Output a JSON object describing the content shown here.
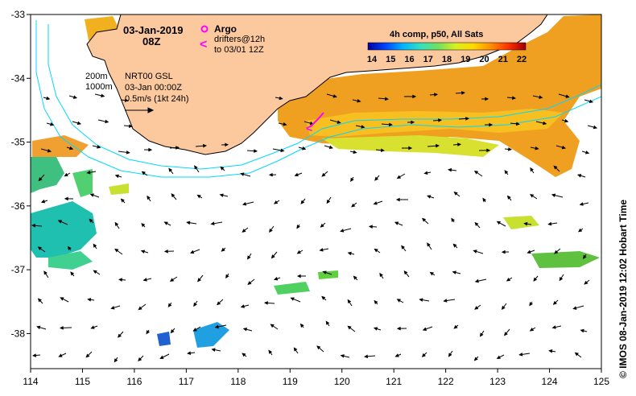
{
  "header": {
    "date": "03-Jan-2019",
    "time": "08Z"
  },
  "legend": {
    "argo_label": "Argo",
    "drifters_label_1": "drifters@12h",
    "drifters_label_2": "to 03/01 12Z",
    "drifters_symbol": "<"
  },
  "colorbar": {
    "title": "4h comp, p50, All Sats",
    "ticks": [
      "14",
      "15",
      "16",
      "17",
      "18",
      "19",
      "20",
      "21",
      "22"
    ],
    "min": 14,
    "max": 22,
    "colors": [
      "#0000a0",
      "#0044ff",
      "#00b4ff",
      "#33e0c0",
      "#70e060",
      "#d8f020",
      "#ffd800",
      "#ff9000",
      "#ff3000",
      "#a00000"
    ]
  },
  "annotations": {
    "isobath_200": "200m",
    "isobath_1000": "1000m",
    "product": "NRT00 GSL",
    "product_time": "03-Jan 00:00Z",
    "scale_label": "0.5m/s (1kt 24h)"
  },
  "axes": {
    "lon_ticks": [
      "114",
      "115",
      "116",
      "117",
      "118",
      "119",
      "120",
      "121",
      "122",
      "123",
      "124",
      "125"
    ],
    "lat_ticks": [
      "-33",
      "-34",
      "-35",
      "-36",
      "-37",
      "-38"
    ],
    "lon_range": [
      114,
      125
    ],
    "lat_range": [
      -38.55,
      -33
    ]
  },
  "credit": "© IMOS 08-Jan-2019 12:02 Hobart Time",
  "colors": {
    "land": "#fcc99f",
    "isobath": "#00d8ff",
    "argo": "#ff00ff",
    "drifter": "#ff00ff"
  }
}
